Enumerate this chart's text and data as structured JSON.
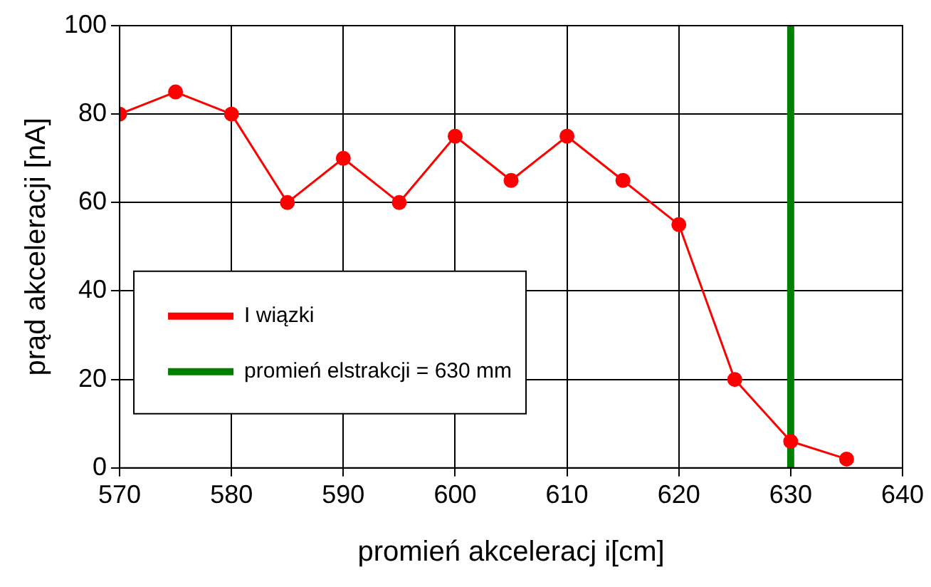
{
  "chart_data": {
    "type": "line",
    "xlabel": "promień akceleracj i[cm]",
    "ylabel": "prąd akceleracji [nA]",
    "x": [
      570,
      575,
      580,
      585,
      590,
      595,
      600,
      605,
      610,
      615,
      620,
      625,
      630,
      635
    ],
    "series": [
      {
        "name": "I wiązki",
        "color": "#ff0000",
        "values": [
          80,
          85,
          80,
          60,
          70,
          60,
          75,
          65,
          75,
          65,
          55,
          20,
          6,
          2
        ]
      },
      {
        "name": "promień elstrakcji = 630 mm",
        "color": "#008000",
        "type": "line",
        "marker": "none",
        "x": [
          630,
          630
        ],
        "values": [
          0,
          100
        ]
      }
    ],
    "xlim": [
      570,
      640
    ],
    "xticks": [
      570,
      580,
      590,
      600,
      610,
      620,
      630,
      640
    ],
    "ylim": [
      0,
      100
    ],
    "yticks": [
      0,
      20,
      40,
      60,
      80,
      100
    ],
    "grid": true,
    "legend": "bottom left",
    "marker": "circle",
    "line_style": "solid"
  }
}
